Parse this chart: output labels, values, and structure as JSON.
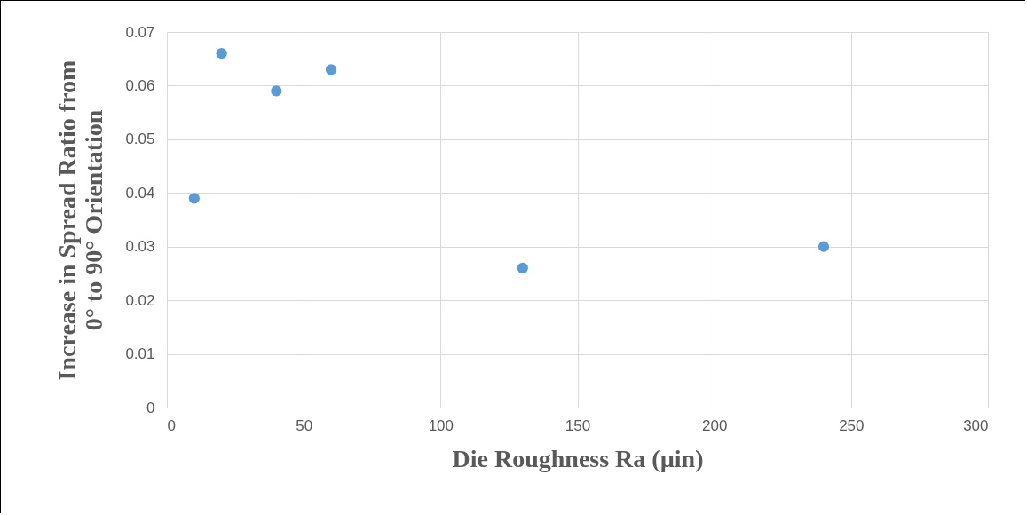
{
  "chart_data": {
    "type": "scatter",
    "xlabel": "Die Roughness Ra (µin)",
    "ylabel": "Increase in Spread Ratio from\n0° to 90° Orientation",
    "x": [
      10,
      20,
      40,
      60,
      130,
      240
    ],
    "series": [
      {
        "color": "#5b9bd5",
        "values": [
          0.039,
          0.066,
          0.059,
          0.063,
          0.026,
          0.03
        ]
      }
    ],
    "xlim": [
      0,
      300
    ],
    "xticks": [
      0,
      50,
      100,
      150,
      200,
      250,
      300
    ],
    "ylim": [
      0,
      0.07
    ],
    "yticks": [
      {
        "value": 0,
        "label": "0"
      },
      0.01,
      0.02,
      0.03,
      0.04,
      0.05,
      0.06,
      0.07
    ],
    "grid": true,
    "marker": "circle"
  }
}
